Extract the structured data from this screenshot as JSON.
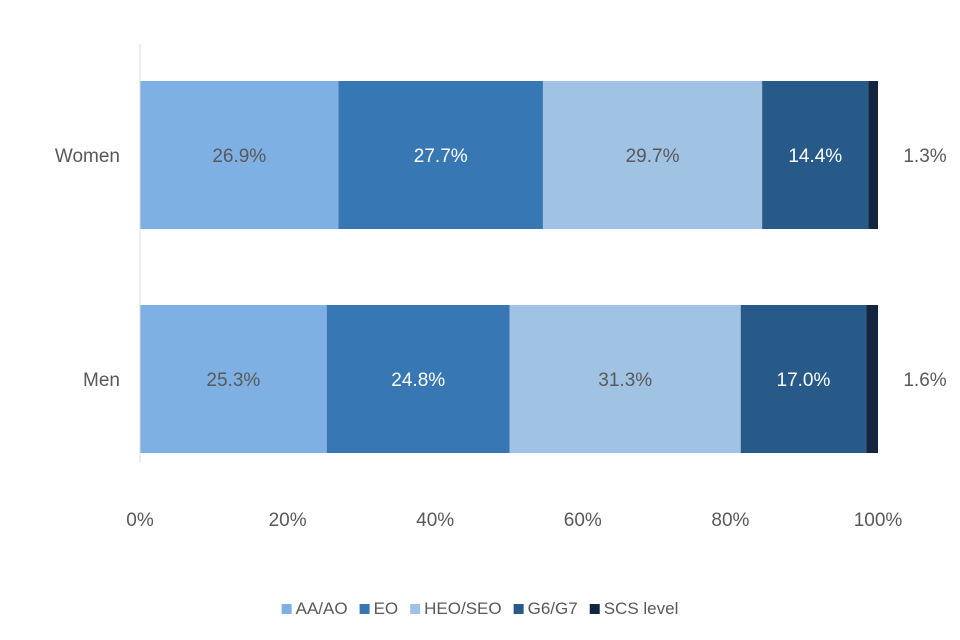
{
  "chart_data": {
    "type": "bar",
    "orientation": "horizontal",
    "stacked": true,
    "categories": [
      "Women",
      "Men"
    ],
    "series": [
      {
        "name": "AA/AO",
        "color": "#7EB0E3",
        "label_color": "#595959",
        "values": [
          26.9,
          25.3
        ],
        "labels": [
          "26.9%",
          "25.3%"
        ]
      },
      {
        "name": "EO",
        "color": "#3778B4",
        "label_color": "#ffffff",
        "values": [
          27.7,
          24.8
        ],
        "labels": [
          "27.7%",
          "24.8%"
        ]
      },
      {
        "name": "HEO/SEO",
        "color": "#A0C2E3",
        "label_color": "#595959",
        "values": [
          29.7,
          31.3
        ],
        "labels": [
          "29.7%",
          "31.3%"
        ]
      },
      {
        "name": "G6/G7",
        "color": "#275A88",
        "label_color": "#ffffff",
        "values": [
          14.4,
          17.0
        ],
        "labels": [
          "14.4%",
          "17.0%"
        ]
      },
      {
        "name": "SCS level",
        "color": "#14263F",
        "label_color": "#595959",
        "values": [
          1.3,
          1.6
        ],
        "labels": [
          "1.3%",
          "1.6%"
        ],
        "label_outside": true
      }
    ],
    "xlim": [
      0,
      100
    ],
    "x_ticks": [
      "0%",
      "20%",
      "40%",
      "60%",
      "80%",
      "100%"
    ],
    "legend_position": "bottom",
    "grid": false,
    "title": "",
    "xlabel": "",
    "ylabel": ""
  }
}
